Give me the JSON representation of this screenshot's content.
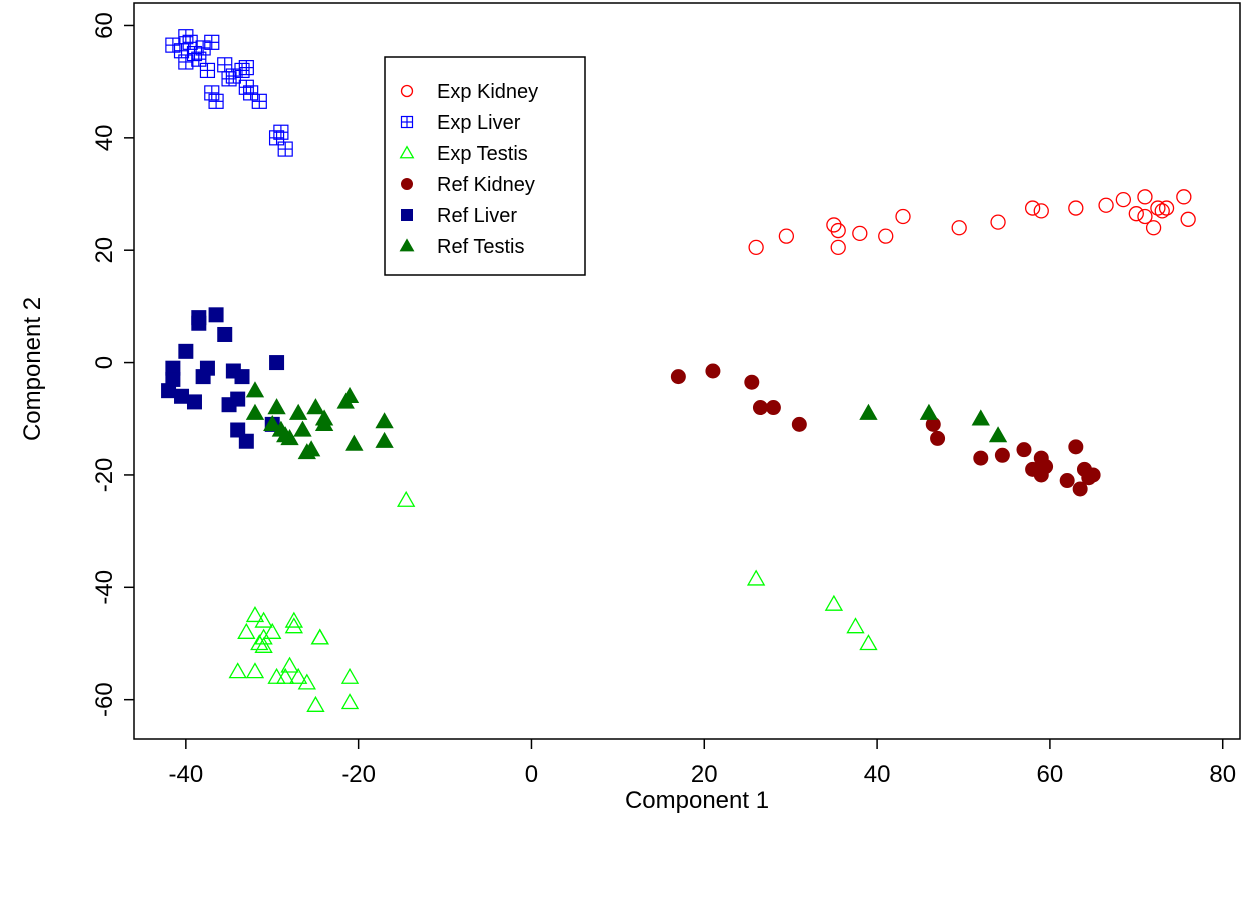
{
  "chart_data": {
    "type": "scatter",
    "xlabel": "Component 1",
    "ylabel": "Component 2",
    "xlim": [
      -46,
      82
    ],
    "ylim": [
      -67,
      64
    ],
    "xticks": [
      -40,
      -20,
      0,
      20,
      40,
      60,
      80
    ],
    "yticks": [
      -60,
      -40,
      -20,
      0,
      20,
      40,
      60
    ],
    "xtick_labels": [
      "-40",
      "-20",
      "0",
      "20",
      "40",
      "60",
      "80"
    ],
    "ytick_labels": [
      "-60",
      "-40",
      "-20",
      "0",
      "20",
      "40",
      "60"
    ],
    "legend_position": "top-left",
    "series": [
      {
        "name": "Exp Kidney",
        "marker": "circle-open",
        "color": "#ff0000",
        "points": [
          [
            26,
            20.5
          ],
          [
            29.5,
            22.5
          ],
          [
            35,
            24.5
          ],
          [
            35.5,
            23.5
          ],
          [
            35.5,
            20.5
          ],
          [
            38,
            23
          ],
          [
            41,
            22.5
          ],
          [
            43,
            26
          ],
          [
            49.5,
            24
          ],
          [
            54,
            25
          ],
          [
            58,
            27.5
          ],
          [
            59,
            27
          ],
          [
            63,
            27.5
          ],
          [
            66.5,
            28
          ],
          [
            68.5,
            29
          ],
          [
            70,
            26.5
          ],
          [
            71,
            29.5
          ],
          [
            71,
            26
          ],
          [
            72,
            24
          ],
          [
            72.5,
            27.5
          ],
          [
            73,
            27
          ],
          [
            73.5,
            27.5
          ],
          [
            75.5,
            29.5
          ],
          [
            76,
            25.5
          ]
        ]
      },
      {
        "name": "Exp Liver",
        "marker": "square-plus",
        "color": "#0000ff",
        "points": [
          [
            -41.5,
            56.5
          ],
          [
            -40.5,
            55.5
          ],
          [
            -40,
            58
          ],
          [
            -40,
            53.5
          ],
          [
            -39.5,
            57
          ],
          [
            -39,
            55
          ],
          [
            -38.5,
            54
          ],
          [
            -38,
            56
          ],
          [
            -37.5,
            52
          ],
          [
            -37,
            57
          ],
          [
            -37,
            48
          ],
          [
            -36.5,
            46.5
          ],
          [
            -35.5,
            53
          ],
          [
            -35,
            50.5
          ],
          [
            -34.5,
            51
          ],
          [
            -33.5,
            52
          ],
          [
            -33,
            49
          ],
          [
            -33,
            52.5
          ],
          [
            -32.5,
            48
          ],
          [
            -31.5,
            46.5
          ],
          [
            -29.5,
            40
          ],
          [
            -29,
            41
          ],
          [
            -28.5,
            38
          ]
        ]
      },
      {
        "name": "Exp Testis",
        "marker": "triangle-open",
        "color": "#00ff00",
        "points": [
          [
            -14.5,
            -24.5
          ],
          [
            -34,
            -55
          ],
          [
            -33,
            -48
          ],
          [
            -32,
            -45
          ],
          [
            -31.5,
            -50
          ],
          [
            -31,
            -49
          ],
          [
            -31,
            -46
          ],
          [
            -30,
            -48
          ],
          [
            -29.5,
            -56
          ],
          [
            -28.5,
            -56
          ],
          [
            -28,
            -54
          ],
          [
            -27.5,
            -46
          ],
          [
            -27.5,
            -47
          ],
          [
            -27,
            -56
          ],
          [
            -26,
            -57
          ],
          [
            -25,
            -61
          ],
          [
            -24.5,
            -49
          ],
          [
            -24.5,
            -49
          ],
          [
            -21,
            -56
          ],
          [
            -21,
            -60.5
          ],
          [
            -31,
            -50.5
          ],
          [
            -32,
            -55
          ],
          [
            26,
            -38.5
          ],
          [
            35,
            -43
          ],
          [
            37.5,
            -47
          ],
          [
            39,
            -50
          ]
        ]
      },
      {
        "name": "Ref Kidney",
        "marker": "circle-filled",
        "color": "#8b0000",
        "points": [
          [
            17,
            -2.5
          ],
          [
            21,
            -1.5
          ],
          [
            25.5,
            -3.5
          ],
          [
            26.5,
            -8
          ],
          [
            28,
            -8
          ],
          [
            31,
            -11
          ],
          [
            46.5,
            -11
          ],
          [
            47,
            -13.5
          ],
          [
            52,
            -17
          ],
          [
            54.5,
            -16.5
          ],
          [
            57,
            -15.5
          ],
          [
            58,
            -19
          ],
          [
            59,
            -17
          ],
          [
            59,
            -20
          ],
          [
            59.5,
            -18.5
          ],
          [
            62,
            -21
          ],
          [
            63,
            -15
          ],
          [
            63.5,
            -22.5
          ],
          [
            64,
            -19
          ],
          [
            65,
            -20
          ],
          [
            64.5,
            -20.5
          ]
        ]
      },
      {
        "name": "Ref Liver",
        "marker": "square-filled",
        "color": "#00008b",
        "points": [
          [
            -42,
            -5
          ],
          [
            -41.5,
            -1
          ],
          [
            -41.5,
            -3
          ],
          [
            -40.5,
            -6
          ],
          [
            -40,
            2
          ],
          [
            -39,
            -7
          ],
          [
            -38.5,
            8
          ],
          [
            -38.5,
            7
          ],
          [
            -38,
            -2.5
          ],
          [
            -37.5,
            -1
          ],
          [
            -36.5,
            8.5
          ],
          [
            -35.5,
            5
          ],
          [
            -35,
            -7.5
          ],
          [
            -34.5,
            -1.5
          ],
          [
            -34,
            -6.5
          ],
          [
            -34,
            -12
          ],
          [
            -33.5,
            -2.5
          ],
          [
            -33,
            -14
          ],
          [
            -30,
            -11
          ],
          [
            -29.5,
            0
          ]
        ]
      },
      {
        "name": "Ref Testis",
        "marker": "triangle-filled",
        "color": "#007000",
        "points": [
          [
            -32,
            -5
          ],
          [
            -32,
            -9
          ],
          [
            -30,
            -11
          ],
          [
            -29.5,
            -8
          ],
          [
            -29,
            -12
          ],
          [
            -28.5,
            -13
          ],
          [
            -28,
            -13.5
          ],
          [
            -27,
            -9
          ],
          [
            -26.5,
            -12
          ],
          [
            -26,
            -16
          ],
          [
            -25.5,
            -15.5
          ],
          [
            -25,
            -8
          ],
          [
            -24,
            -11
          ],
          [
            -24,
            -10
          ],
          [
            -21.5,
            -7
          ],
          [
            -21,
            -6
          ],
          [
            -20.5,
            -14.5
          ],
          [
            -17,
            -10.5
          ],
          [
            -17,
            -14
          ],
          [
            39,
            -9
          ],
          [
            46,
            -9
          ],
          [
            52,
            -10
          ],
          [
            54,
            -13
          ]
        ]
      }
    ]
  }
}
